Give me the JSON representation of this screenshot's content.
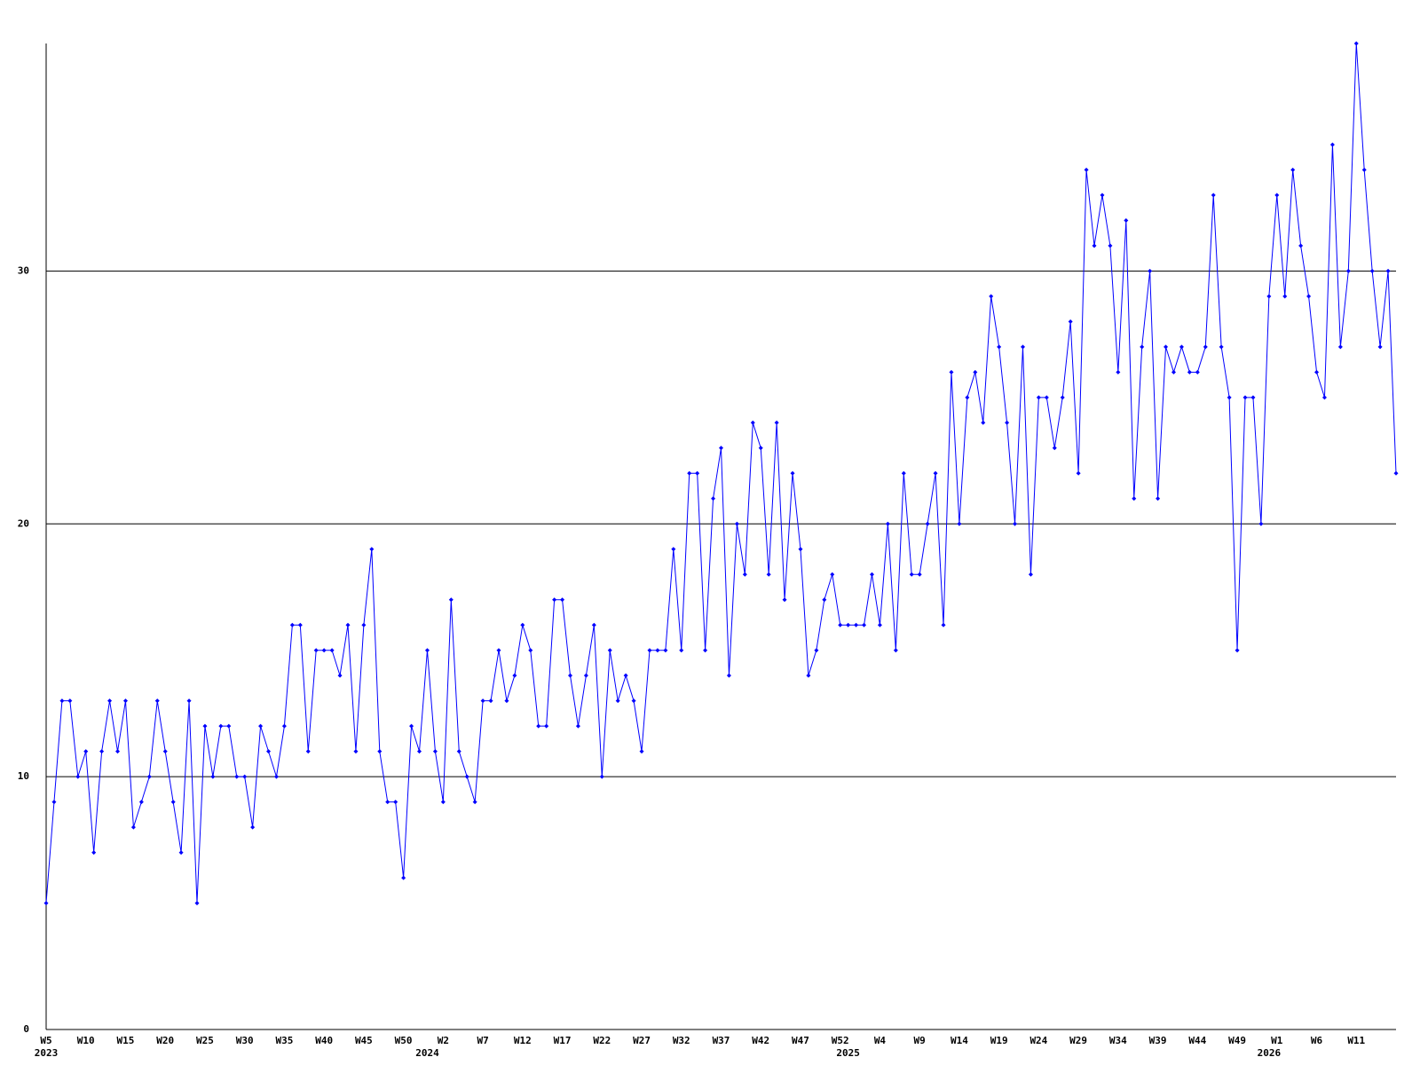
{
  "chart_data": {
    "type": "line",
    "categories": [
      "W5",
      null,
      null,
      null,
      null,
      "W10",
      null,
      null,
      null,
      null,
      "W15",
      null,
      null,
      null,
      null,
      "W20",
      null,
      null,
      null,
      null,
      "W25",
      null,
      null,
      null,
      null,
      "W30",
      null,
      null,
      null,
      null,
      "W35",
      null,
      null,
      null,
      null,
      "W40",
      null,
      null,
      null,
      null,
      "W45",
      null,
      null,
      null,
      null,
      "W50",
      null,
      null,
      null,
      null,
      "W2",
      null,
      null,
      null,
      null,
      "W7",
      null,
      null,
      null,
      null,
      "W12",
      null,
      null,
      null,
      null,
      "W17",
      null,
      null,
      null,
      null,
      "W22",
      null,
      null,
      null,
      null,
      "W27",
      null,
      null,
      null,
      null,
      "W32",
      null,
      null,
      null,
      null,
      "W37",
      null,
      null,
      null,
      null,
      "W42",
      null,
      null,
      null,
      null,
      "W47",
      null,
      null,
      null,
      null,
      "W52",
      null,
      null,
      null,
      null,
      "W4",
      null,
      null,
      null,
      null,
      "W9",
      null,
      null,
      null,
      null,
      "W14",
      null,
      null,
      null,
      null,
      "W19",
      null,
      null,
      null,
      null,
      "W24",
      null,
      null,
      null,
      null,
      "W29",
      null,
      null,
      null,
      null,
      "W34",
      null,
      null,
      null,
      null,
      "W39",
      null,
      null,
      null,
      null,
      "W44",
      null,
      null,
      null,
      null,
      "W49",
      null,
      null,
      null,
      null,
      "W1",
      null,
      null,
      null,
      null,
      "W6",
      null,
      null,
      null,
      null,
      "W11",
      null,
      null,
      null,
      null,
      null
    ],
    "year_categories": [
      "2023",
      null,
      null,
      null,
      null,
      null,
      null,
      null,
      null,
      null,
      null,
      null,
      null,
      null,
      null,
      null,
      null,
      null,
      null,
      null,
      null,
      null,
      null,
      null,
      null,
      null,
      null,
      null,
      null,
      null,
      null,
      null,
      null,
      null,
      null,
      null,
      null,
      null,
      null,
      null,
      null,
      null,
      null,
      null,
      null,
      null,
      null,
      null,
      "2024",
      null,
      null,
      null,
      null,
      null,
      null,
      null,
      null,
      null,
      null,
      null,
      null,
      null,
      null,
      null,
      null,
      null,
      null,
      null,
      null,
      null,
      null,
      null,
      null,
      null,
      null,
      null,
      null,
      null,
      null,
      null,
      null,
      null,
      null,
      null,
      null,
      null,
      null,
      null,
      null,
      null,
      null,
      null,
      null,
      null,
      null,
      null,
      null,
      null,
      null,
      null,
      null,
      "2025",
      null,
      null,
      null,
      null,
      null,
      null,
      null,
      null,
      null,
      null,
      null,
      null,
      null,
      null,
      null,
      null,
      null,
      null,
      null,
      null,
      null,
      null,
      null,
      null,
      null,
      null,
      null,
      null,
      null,
      null,
      null,
      null,
      null,
      null,
      null,
      null,
      null,
      null,
      null,
      null,
      null,
      null,
      null,
      null,
      null,
      null,
      null,
      null,
      null,
      null,
      null,
      null,
      "2026",
      null,
      null,
      null,
      null,
      null,
      null,
      null,
      null,
      null,
      null,
      null,
      null,
      null,
      null,
      null,
      null
    ],
    "values": [
      5,
      9,
      13,
      13,
      10,
      11,
      7,
      11,
      13,
      11,
      13,
      8,
      9,
      10,
      13,
      11,
      9,
      7,
      13,
      5,
      12,
      10,
      12,
      12,
      10,
      10,
      8,
      12,
      11,
      10,
      12,
      16,
      16,
      11,
      15,
      15,
      15,
      14,
      16,
      11,
      16,
      19,
      11,
      9,
      9,
      6,
      12,
      11,
      15,
      11,
      9,
      17,
      11,
      10,
      9,
      13,
      13,
      15,
      13,
      14,
      16,
      15,
      12,
      12,
      17,
      17,
      14,
      12,
      14,
      16,
      10,
      15,
      13,
      14,
      13,
      11,
      15,
      15,
      15,
      19,
      15,
      22,
      22,
      15,
      21,
      23,
      14,
      20,
      18,
      24,
      23,
      18,
      24,
      17,
      22,
      19,
      14,
      15,
      17,
      18,
      16,
      16,
      16,
      16,
      18,
      16,
      20,
      15,
      22,
      18,
      18,
      20,
      22,
      16,
      26,
      20,
      25,
      26,
      24,
      29,
      27,
      24,
      20,
      27,
      18,
      25,
      25,
      23,
      25,
      28,
      22,
      34,
      31,
      33,
      31,
      26,
      32,
      21,
      27,
      30,
      21,
      27,
      26,
      27,
      26,
      26,
      27,
      33,
      27,
      25,
      15,
      25,
      25,
      20,
      29,
      33,
      29,
      34,
      31,
      29,
      26,
      25,
      35,
      27,
      30,
      39,
      34,
      30,
      27,
      30,
      22
    ],
    "color": "#0000ff",
    "ylim": [
      0,
      39
    ],
    "yticks": [
      0,
      10,
      20,
      30
    ],
    "grid": true
  }
}
